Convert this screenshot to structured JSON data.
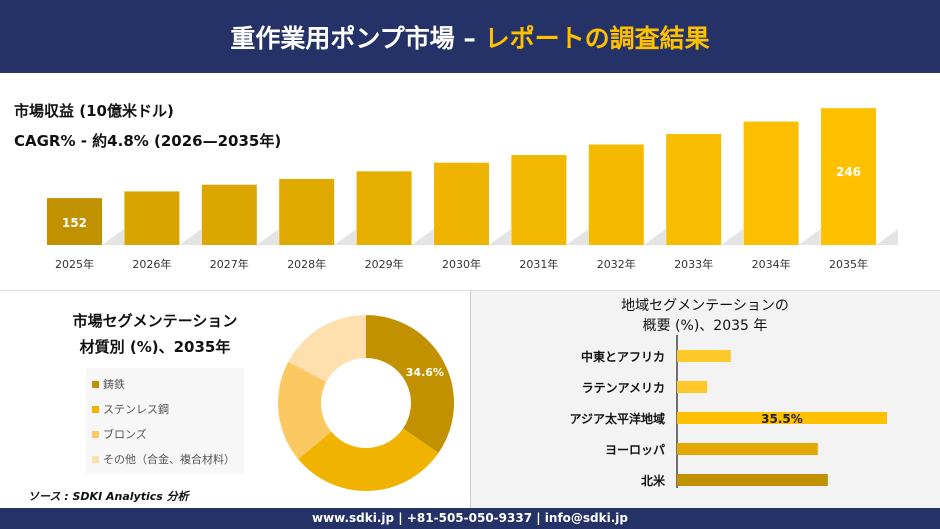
{
  "header": {
    "title_main": "重作業用ポンプ市場 –",
    "title_highlight": "レポートの調査結果"
  },
  "revenue": {
    "title": "市場収益 (10億米ドル)",
    "cagr": "CAGR% - 約4.8% (2026—2035年)"
  },
  "colors": {
    "navy": "#253268",
    "accent": "#ffc000"
  },
  "chart_data": [
    {
      "type": "bar",
      "categories": [
        "2025年",
        "2026年",
        "2027年",
        "2028年",
        "2029年",
        "2030年",
        "2031年",
        "2032年",
        "2033年",
        "2034年",
        "2035年"
      ],
      "values": [
        152,
        159,
        166,
        172,
        180,
        189,
        197,
        208,
        219,
        232,
        246
      ],
      "data_labels": {
        "0": "152",
        "10": "246"
      },
      "colors": [
        "#c29100",
        "#d9a300",
        "#dca600",
        "#e0a900",
        "#e6ae00",
        "#eeb400",
        "#f2b700",
        "#f5ba00",
        "#f8bc00",
        "#fbbe00",
        "#ffc000"
      ],
      "ylabel": "",
      "xlabel": "",
      "grid": false
    },
    {
      "type": "pie",
      "donut": true,
      "title": "市場セグメンテーション 材質別 (%)、2035年",
      "labels": [
        "鋳鉄",
        "ステンレス鋼",
        "ブロンズ",
        "その他（合金、複合材料）"
      ],
      "values": [
        34.6,
        29.4,
        18.8,
        17.2
      ],
      "data_labels": {
        "0": "34.6%"
      },
      "colors": [
        "#c29100",
        "#f0b400",
        "#fbc862",
        "#fde0ae"
      ],
      "legend": "left"
    },
    {
      "type": "bar",
      "orientation": "horizontal",
      "title": "地域セグメンテーションの 概要 (%)、2035 年",
      "categories": [
        "中東とアフリカ",
        "ラテンアメリカ",
        "アジア太平洋地域",
        "ヨーロッパ",
        "北米"
      ],
      "values": [
        9.1,
        5.1,
        35.5,
        23.8,
        25.5
      ],
      "data_labels": {
        "2": "35.5%"
      },
      "colors": [
        "#ffc82a",
        "#ffc82a",
        "#ffc000",
        "#e2a800",
        "#c29100"
      ]
    }
  ],
  "segment": {
    "title1": "市場セグメンテーション",
    "title2": "材質別 (%)、2035年"
  },
  "region": {
    "title1": "地域セグメンテーションの",
    "title2": "概要 (%)、2035 年"
  },
  "source": "ソース : SDKI Analytics 分析",
  "footer": "www.sdki.jp | +81-505-050-9337 | info@sdki.jp"
}
